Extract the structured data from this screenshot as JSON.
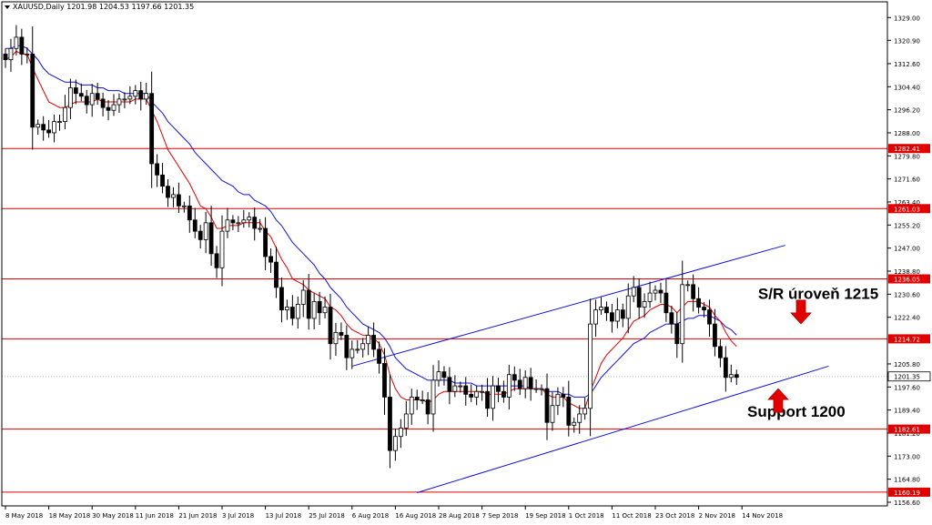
{
  "chart_data": {
    "type": "candlestick",
    "title": "XAUUSD,Daily  1201.98 1204.53 1197.66 1201.35",
    "symbol": "XAUUSD",
    "timeframe": "Daily",
    "ohlc_header": {
      "open": 1201.98,
      "high": 1204.53,
      "low": 1197.66,
      "close": 1201.35
    },
    "current_price": 1201.35,
    "ylim": [
      1156.6,
      1332.0
    ],
    "yticks": [
      1329.0,
      1320.9,
      1312.6,
      1304.4,
      1296.2,
      1288.0,
      1279.8,
      1271.6,
      1263.4,
      1255.2,
      1247.0,
      1238.8,
      1230.6,
      1222.4,
      1205.8,
      1197.6,
      1189.4,
      1181.2,
      1173.0,
      1164.8,
      1156.6
    ],
    "ytick_labels": [
      "1329.00",
      "1320.90",
      "1312.60",
      "1304.40",
      "1296.20",
      "1288.00",
      "1279.80",
      "1271.60",
      "1263.40",
      "1255.20",
      "1247.00",
      "1238.80",
      "1230.60",
      "1222.40",
      "1205.80",
      "1197.60",
      "1189.40",
      "1181.20",
      "1173.00",
      "1164.80",
      "1156.60"
    ],
    "xticks": [
      {
        "i": 0,
        "label": "8 May 2018"
      },
      {
        "i": 8,
        "label": "18 May 2018"
      },
      {
        "i": 16,
        "label": "30 May 2018"
      },
      {
        "i": 24,
        "label": "11 Jun 2018"
      },
      {
        "i": 32,
        "label": "21 Jun 2018"
      },
      {
        "i": 40,
        "label": "3 Jul 2018"
      },
      {
        "i": 48,
        "label": "13 Jul 2018"
      },
      {
        "i": 56,
        "label": "25 Jul 2018"
      },
      {
        "i": 64,
        "label": "6 Aug 2018"
      },
      {
        "i": 72,
        "label": "16 Aug 2018"
      },
      {
        "i": 80,
        "label": "28 Aug 2018"
      },
      {
        "i": 88,
        "label": "7 Sep 2018"
      },
      {
        "i": 96,
        "label": "19 Sep 2018"
      },
      {
        "i": 104,
        "label": "1 Oct 2018"
      },
      {
        "i": 112,
        "label": "11 Oct 2018"
      },
      {
        "i": 120,
        "label": "23 Oct 2018"
      },
      {
        "i": 128,
        "label": "2 Nov 2018"
      },
      {
        "i": 136,
        "label": "14 Nov 2018"
      }
    ],
    "closes": [
      1314,
      1318,
      1322,
      1316,
      1316,
      1290,
      1291,
      1289,
      1288,
      1292,
      1292,
      1297,
      1304,
      1302,
      1301,
      1298,
      1302,
      1300,
      1297,
      1296,
      1298,
      1300,
      1300,
      1301,
      1303,
      1300,
      1302,
      1277,
      1273,
      1269,
      1265,
      1266,
      1262,
      1262,
      1257,
      1253,
      1250,
      1256,
      1245,
      1240,
      1253,
      1257,
      1256,
      1256,
      1257,
      1258,
      1254,
      1254,
      1244,
      1242,
      1233,
      1225,
      1226,
      1222,
      1227,
      1232,
      1222,
      1228,
      1224,
      1226,
      1213,
      1217,
      1216,
      1208,
      1211,
      1211,
      1213,
      1216,
      1211,
      1206,
      1194,
      1175,
      1180,
      1183,
      1188,
      1194,
      1193,
      1193,
      1188,
      1200,
      1203,
      1201,
      1196,
      1198,
      1198,
      1195,
      1194,
      1196,
      1196,
      1190,
      1198,
      1196,
      1194,
      1202,
      1200,
      1197,
      1201,
      1197,
      1197,
      1197,
      1185,
      1191,
      1195,
      1194,
      1184,
      1185,
      1188,
      1190,
      1220,
      1225,
      1226,
      1224,
      1221,
      1225,
      1222,
      1230,
      1233,
      1226,
      1228,
      1231,
      1232,
      1231,
      1224,
      1220,
      1213,
      1234,
      1234,
      1229,
      1226,
      1225,
      1220,
      1212,
      1208,
      1201,
      1202,
      1201
    ],
    "ema_fast": {
      "color": "#e00000",
      "values": [
        1314,
        1315,
        1317,
        1316,
        1316,
        1311,
        1307,
        1303,
        1299,
        1298,
        1297,
        1297,
        1298,
        1299,
        1299,
        1299,
        1299,
        1300,
        1299,
        1299,
        1299,
        1299,
        1299,
        1299,
        1300,
        1300,
        1300,
        1296,
        1292,
        1287,
        1282,
        1279,
        1276,
        1273,
        1270,
        1266,
        1262,
        1261,
        1258,
        1254,
        1254,
        1255,
        1255,
        1255,
        1256,
        1256,
        1256,
        1256,
        1253,
        1251,
        1247,
        1243,
        1240,
        1236,
        1235,
        1234,
        1232,
        1231,
        1230,
        1229,
        1226,
        1225,
        1223,
        1220,
        1218,
        1217,
        1216,
        1216,
        1215,
        1213,
        1209,
        1202,
        1197,
        1194,
        1193,
        1193,
        1193,
        1193,
        1192,
        1193,
        1195,
        1196,
        1196,
        1196,
        1196,
        1196,
        1196,
        1196,
        1196,
        1195,
        1195,
        1195,
        1195,
        1196,
        1197,
        1197,
        1197,
        1197,
        1197,
        1197,
        1195,
        1194,
        1194,
        1194,
        1192,
        1191,
        1190,
        1190,
        1196,
        1201,
        1206,
        1209,
        1211,
        1213,
        1215,
        1218,
        1221,
        1222,
        1223,
        1225,
        1226,
        1227,
        1227,
        1226,
        1224,
        1226,
        1228,
        1228,
        1228,
        1227,
        1226,
        1223,
        1221,
        1217,
        1214,
        1212
      ]
    },
    "ema_slow": {
      "color": "#1010e0",
      "values": [
        1318,
        1318,
        1319,
        1319,
        1318,
        1316,
        1314,
        1311,
        1309,
        1308,
        1307,
        1306,
        1306,
        1306,
        1305,
        1305,
        1305,
        1304,
        1304,
        1303,
        1303,
        1303,
        1302,
        1302,
        1302,
        1302,
        1302,
        1299,
        1297,
        1295,
        1292,
        1290,
        1288,
        1286,
        1284,
        1281,
        1279,
        1277,
        1275,
        1273,
        1271,
        1270,
        1269,
        1267,
        1266,
        1266,
        1264,
        1263,
        1262,
        1260,
        1257,
        1255,
        1252,
        1249,
        1247,
        1245,
        1243,
        1241,
        1238,
        1236,
        1233,
        1231,
        1229,
        1226,
        1224,
        1222,
        1220,
        1219,
        1218,
        1217,
        1215,
        1212,
        1208,
        1206,
        1204,
        1203,
        1202,
        1201,
        1200,
        1200,
        1200,
        1200,
        1200,
        1199,
        1199,
        1199,
        1199,
        1198,
        1198,
        1198,
        1198,
        1198,
        1198,
        1198,
        1198,
        1198,
        1198,
        1197,
        1197,
        1197,
        1196,
        1196,
        1196,
        1195,
        1195,
        1194,
        1194,
        1194,
        1195,
        1198,
        1201,
        1203,
        1205,
        1207,
        1209,
        1211,
        1213,
        1214,
        1215,
        1217,
        1218,
        1219,
        1220,
        1220,
        1220,
        1221,
        1222,
        1222,
        1223,
        1223,
        1223,
        1222,
        1221,
        1219,
        1218,
        1216
      ]
    },
    "horizontal_levels": [
      {
        "price": 1282.41,
        "label": "1282.41"
      },
      {
        "price": 1261.03,
        "label": "1261.03"
      },
      {
        "price": 1236.05,
        "label": "1236.05"
      },
      {
        "price": 1214.72,
        "label": "1214.72"
      },
      {
        "price": 1182.61,
        "label": "1182.61"
      },
      {
        "price": 1160.19,
        "label": "1160.19"
      }
    ],
    "level_color": "#e00000",
    "channel_color": "#1010e0",
    "channel_lines": [
      {
        "from": {
          "i": 64,
          "price": 1205
        },
        "to": {
          "i": 144,
          "price": 1248
        }
      },
      {
        "from": {
          "i": 76,
          "price": 1160
        },
        "to": {
          "i": 152,
          "price": 1205
        }
      }
    ],
    "annotations": [
      {
        "text": "S/R úroveň 1215",
        "price": 1229,
        "i": 142,
        "arrow": "down",
        "arrow_price": 1222
      },
      {
        "text": "Support 1200",
        "price": 1187,
        "i": 140,
        "arrow": "up",
        "arrow_price": 1197
      }
    ],
    "arrow_color": "#e00000",
    "grid": false
  }
}
